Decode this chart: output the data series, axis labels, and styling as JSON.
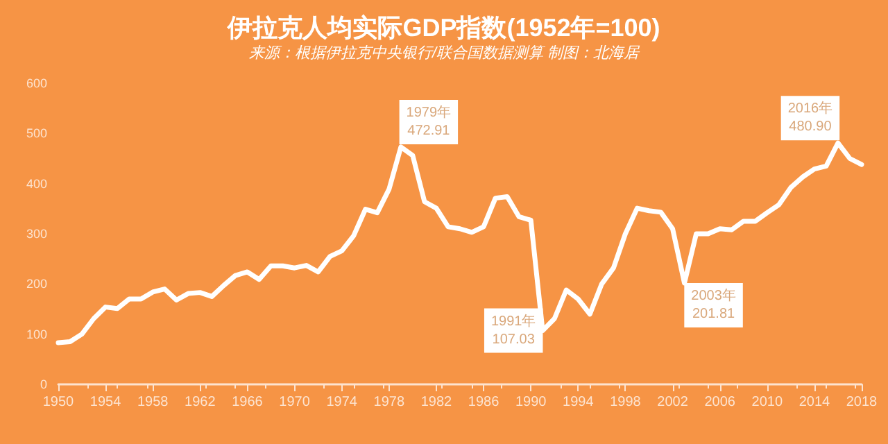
{
  "chart_data": {
    "type": "line",
    "title": "伊拉克人均实际GDP指数(1952年=100)",
    "subtitle": "来源：根据伊拉克中央银行/联合国数据测算 制图：北海居",
    "x": [
      1950,
      1951,
      1952,
      1953,
      1954,
      1955,
      1956,
      1957,
      1958,
      1959,
      1960,
      1961,
      1962,
      1963,
      1964,
      1965,
      1966,
      1967,
      1968,
      1969,
      1970,
      1971,
      1972,
      1973,
      1974,
      1975,
      1976,
      1977,
      1978,
      1979,
      1980,
      1981,
      1982,
      1983,
      1984,
      1985,
      1986,
      1987,
      1988,
      1989,
      1990,
      1991,
      1992,
      1993,
      1994,
      1995,
      1996,
      1997,
      1998,
      1999,
      2000,
      2001,
      2002,
      2003,
      2004,
      2005,
      2006,
      2007,
      2008,
      2009,
      2010,
      2011,
      2012,
      2013,
      2014,
      2015,
      2016,
      2017,
      2018
    ],
    "series": [
      {
        "color": "#ffffff",
        "values": [
          83,
          85,
          100,
          131,
          154,
          151,
          170,
          170,
          184,
          190,
          168,
          181,
          183,
          175,
          197,
          217,
          224,
          209,
          236,
          236,
          232,
          237,
          224,
          255,
          266,
          296,
          349,
          342,
          389,
          472.91,
          456,
          364,
          351,
          314,
          310,
          303,
          314,
          371,
          374,
          334,
          327,
          107.03,
          131,
          188,
          170,
          140,
          200,
          232,
          300,
          351,
          346,
          343,
          310,
          201.81,
          300,
          300,
          310,
          308,
          325,
          325,
          342,
          358,
          392,
          413,
          429,
          435,
          480.9,
          450,
          438
        ]
      }
    ],
    "xlim": [
      1950,
      2018
    ],
    "xticks": [
      1950,
      1954,
      1958,
      1962,
      1966,
      1970,
      1974,
      1978,
      1982,
      1986,
      1990,
      1994,
      1998,
      2002,
      2006,
      2010,
      2014,
      2018
    ],
    "ylim": [
      0,
      600
    ],
    "yticks": [
      0,
      100,
      200,
      300,
      400,
      500,
      600
    ],
    "grid": false,
    "marker": "none",
    "line_style": "solid",
    "annotations": [
      {
        "text": "1979年\n472.91",
        "x": 1979,
        "y": 472.91
      },
      {
        "text": "1991年\n107.03",
        "x": 1991,
        "y": 107.03
      },
      {
        "text": "2003年\n201.81",
        "x": 2003,
        "y": 201.81
      },
      {
        "text": "2016年\n480.90",
        "x": 2016,
        "y": 480.9
      }
    ]
  }
}
